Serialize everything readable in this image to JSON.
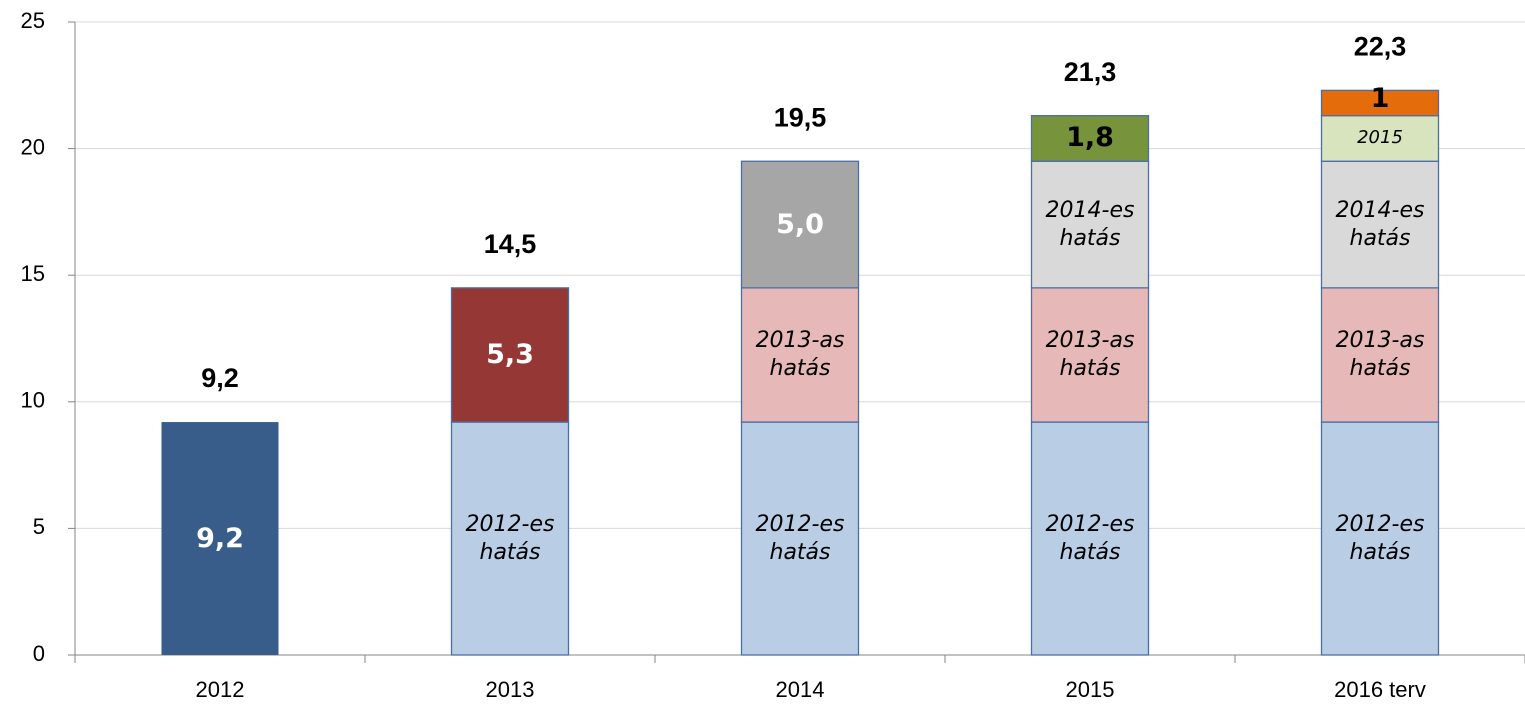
{
  "chart_data": {
    "type": "stacked_bar",
    "categories": [
      "2012",
      "2013",
      "2014",
      "2015",
      "2016 terv"
    ],
    "ylim": [
      0,
      25
    ],
    "yticks": [
      0,
      5,
      10,
      15,
      20,
      25
    ],
    "grid": true,
    "series": [
      {
        "name": "2012-es hatás",
        "values": [
          9.2,
          9.2,
          9.2,
          9.2,
          9.2
        ],
        "value_labels": [
          "9,2",
          null,
          null,
          null,
          null
        ],
        "colors": [
          "#385d8a",
          "#b9cde5",
          "#b9cde5",
          "#b9cde5",
          "#b9cde5"
        ],
        "label_colors": [
          "#ffffff",
          "#000000",
          "#000000",
          "#000000",
          "#000000"
        ]
      },
      {
        "name": "2013-as hatás",
        "values": [
          null,
          5.3,
          5.3,
          5.3,
          5.3
        ],
        "value_labels": [
          null,
          "5,3",
          null,
          null,
          null
        ],
        "colors": [
          null,
          "#953735",
          "#e6b9b8",
          "#e6b9b8",
          "#e6b9b8"
        ],
        "label_colors": [
          null,
          "#ffffff",
          "#000000",
          "#000000",
          "#000000"
        ]
      },
      {
        "name": "2014-es hatás",
        "values": [
          null,
          null,
          5.0,
          5.0,
          5.0
        ],
        "value_labels": [
          null,
          null,
          "5,0",
          null,
          null
        ],
        "colors": [
          null,
          null,
          "#a6a6a6",
          "#d9d9d9",
          "#d9d9d9"
        ],
        "label_colors": [
          null,
          null,
          "#ffffff",
          "#000000",
          "#000000"
        ]
      },
      {
        "name": "2015",
        "values": [
          null,
          null,
          null,
          1.8,
          1.8
        ],
        "value_labels": [
          null,
          null,
          null,
          "1,8",
          null
        ],
        "colors": [
          null,
          null,
          null,
          "#77933c",
          "#d7e4bd"
        ],
        "label_colors": [
          null,
          null,
          null,
          "#000000",
          "#000000"
        ]
      },
      {
        "values": [
          null,
          null,
          null,
          null,
          1
        ],
        "colors": [
          null,
          null,
          null,
          null,
          "#e46c0a"
        ],
        "label_colors": [
          null,
          null,
          null,
          null,
          "#000000"
        ]
      }
    ],
    "totals": [
      9.2,
      14.5,
      19.5,
      21.3,
      22.3
    ],
    "totals_labels": [
      "9,2",
      "14,5",
      "19,5",
      "21,3",
      "22,3"
    ]
  }
}
